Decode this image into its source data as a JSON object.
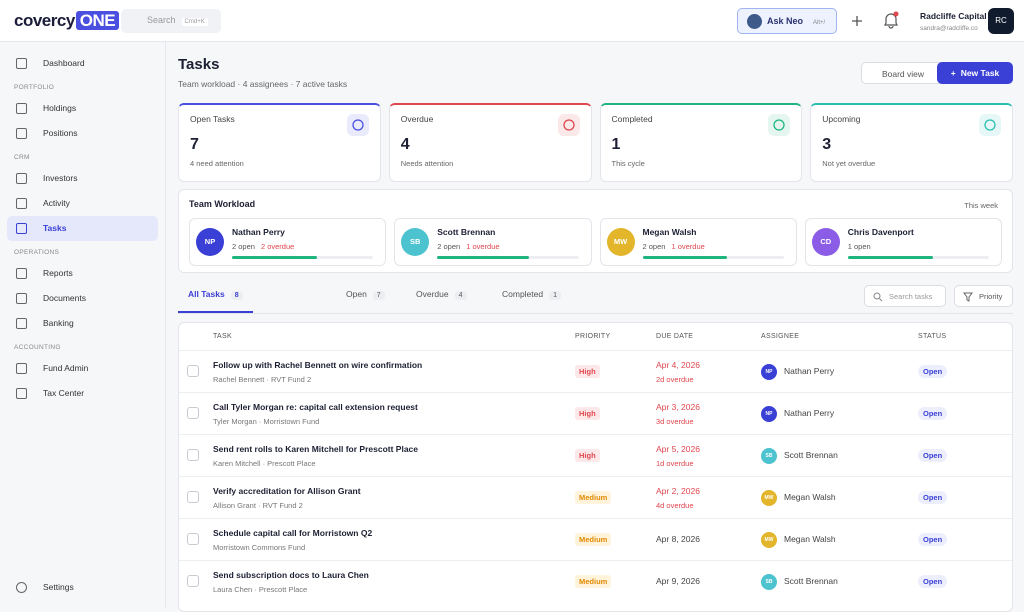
{
  "header": {
    "logo": "covercy",
    "logo_badge": "ONE",
    "search": "Search",
    "search_shortcut": "Cmd+K",
    "ask": "Ask Neo",
    "ask_shortcut": "Alt+/",
    "user_name": "Radcliffe Capital",
    "user_email": "sandra@radcliffe.co",
    "user_initials": "RC"
  },
  "sidebar": {
    "groups": [
      {
        "label": null,
        "items": [
          "Dashboard"
        ]
      },
      {
        "label": "PORTFOLIO",
        "items": [
          "Holdings",
          "Positions"
        ]
      },
      {
        "label": "CRM",
        "items": [
          "Investors",
          "Activity",
          "Tasks"
        ]
      },
      {
        "label": "OPERATIONS",
        "items": [
          "Reports",
          "Documents",
          "Banking"
        ]
      },
      {
        "label": "ACCOUNTING",
        "items": [
          "Fund Admin",
          "Tax Center"
        ]
      }
    ],
    "active": "Tasks",
    "footer": "Settings"
  },
  "page": {
    "title": "Tasks",
    "subtitle": "Team workload · 4 assignees · 7 active tasks",
    "board_button": "Board view",
    "new_button": "New Task"
  },
  "stats": [
    {
      "label": "Open Tasks",
      "value": 7,
      "note": "4 need attention",
      "color": "#4a4fe0"
    },
    {
      "label": "Overdue",
      "value": 4,
      "note": "Needs attention",
      "color": "#e0464e"
    },
    {
      "label": "Completed",
      "value": 1,
      "note": "This cycle",
      "color": "#1fb57f"
    },
    {
      "label": "Upcoming",
      "value": 3,
      "note": "Not yet overdue",
      "color": "#2bbfb3"
    }
  ],
  "workload": {
    "title": "Team Workload",
    "period": "This week",
    "members": [
      {
        "initials": "NP",
        "name": "Nathan Perry",
        "open": "2 open",
        "overdue": "2 overdue",
        "progress": 60,
        "color": "#3a3fd6"
      },
      {
        "initials": "SB",
        "name": "Scott Brennan",
        "open": "2 open",
        "overdue": "1 overdue",
        "progress": 65,
        "color": "#4cc3cf"
      },
      {
        "initials": "MW",
        "name": "Megan Walsh",
        "open": "2 open",
        "overdue": "1 overdue",
        "progress": 60,
        "color": "#e3b52b"
      },
      {
        "initials": "CD",
        "name": "Chris Davenport",
        "open": "1 open",
        "overdue": null,
        "progress": 60,
        "color": "#8b5ce6"
      }
    ]
  },
  "tabs": [
    {
      "label": "All Tasks",
      "count": 8
    },
    {
      "label": "Open",
      "count": 7
    },
    {
      "label": "Overdue",
      "count": 4
    },
    {
      "label": "Completed",
      "count": 1
    }
  ],
  "toolbar": {
    "search": "Search tasks",
    "filter": "Priority"
  },
  "table": {
    "columns": [
      "TASK",
      "PRIORITY",
      "DUE DATE",
      "ASSIGNEE",
      "STATUS"
    ],
    "rows": [
      {
        "title": "Follow up with Rachel Bennett on wire confirmation",
        "sub": "Rachel Bennett · RVT Fund 2",
        "priority": "High",
        "due": "Apr 4, 2026",
        "due_note": "2d overdue",
        "initials": "NP",
        "assignee": "Nathan Perry",
        "status": "Open"
      },
      {
        "title": "Call Tyler Morgan re: capital call extension request",
        "sub": "Tyler Morgan · Morristown Fund",
        "priority": "High",
        "due": "Apr 3, 2026",
        "due_note": "3d overdue",
        "initials": "NP",
        "assignee": "Nathan Perry",
        "status": "Open"
      },
      {
        "title": "Send rent rolls to Karen Mitchell for Prescott Place",
        "sub": "Karen Mitchell · Prescott Place",
        "priority": "High",
        "due": "Apr 5, 2026",
        "due_note": "1d overdue",
        "initials": "SB",
        "assignee": "Scott Brennan",
        "status": "Open"
      },
      {
        "title": "Verify accreditation for Allison Grant",
        "sub": "Allison Grant · RVT Fund 2",
        "priority": "Medium",
        "due": "Apr 2, 2026",
        "due_note": "4d overdue",
        "initials": "MW",
        "assignee": "Megan Walsh",
        "status": "Open"
      },
      {
        "title": "Schedule capital call for Morristown Q2",
        "sub": "Morristown Commons Fund",
        "priority": "Medium",
        "due": "Apr 8, 2026",
        "due_note": null,
        "initials": "MW",
        "assignee": "Megan Walsh",
        "status": "Open"
      },
      {
        "title": "Send subscription docs to Laura Chen",
        "sub": "Laura Chen · Prescott Place",
        "priority": "Medium",
        "due": "Apr 9, 2026",
        "due_note": null,
        "initials": "SB",
        "assignee": "Scott Brennan",
        "status": "Open"
      }
    ]
  }
}
